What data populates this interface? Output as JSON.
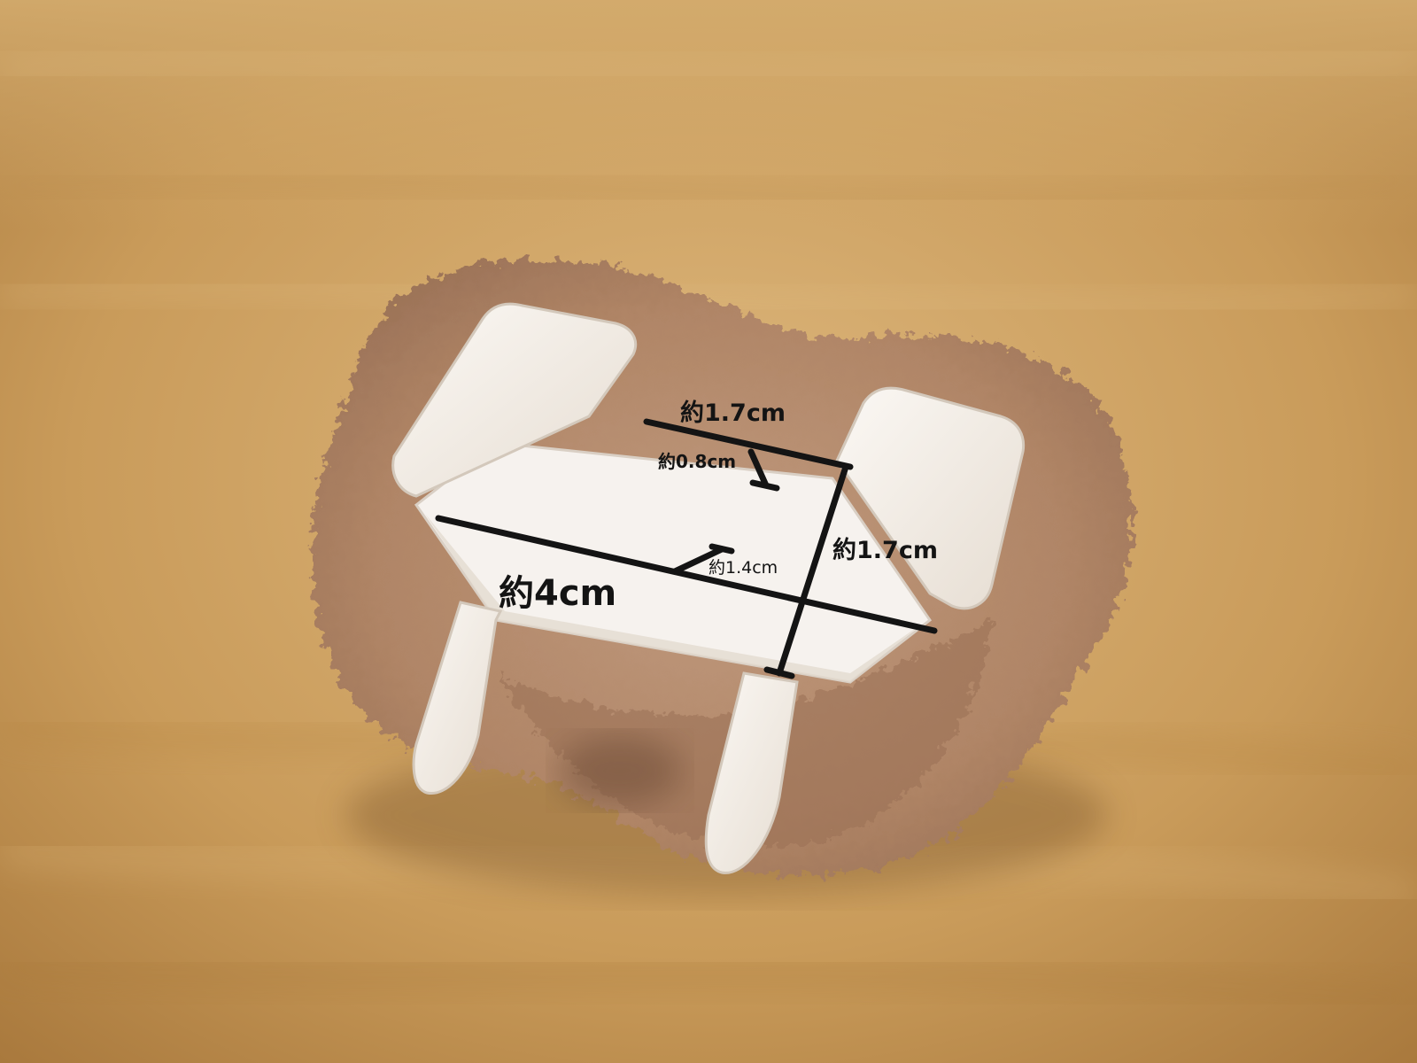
{
  "scene": {
    "subject": "cream-plastic-frame-in-fluffy-beige-fabric",
    "colors": {
      "wood_light": "#d9b378",
      "wood_mid": "#c89a58",
      "wood_dark": "#a87a3e",
      "fabric": "#b88f72",
      "fabric_shadow": "#8f6a52",
      "plastic": "#f3eee8",
      "plastic_shade": "#dcd3c8",
      "line": "#141414"
    }
  },
  "measurements": {
    "top_width": "約1.7cm",
    "inner_depth": "約0.8cm",
    "height": "約1.7cm",
    "mid_depth": "約1.4cm",
    "length": "約4cm"
  }
}
